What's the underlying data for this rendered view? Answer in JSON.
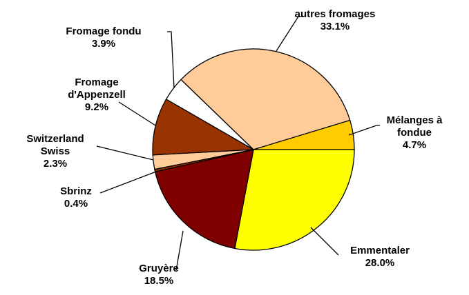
{
  "chart_data": {
    "type": "pie",
    "categories": [
      "Emmentaler",
      "Gruyère",
      "Sbrinz",
      "Switzerland Swiss",
      "Fromage d'Appenzell",
      "Fromage fondu",
      "autres fromages",
      "Mélanges à fondue"
    ],
    "values": [
      28.0,
      18.5,
      0.4,
      2.3,
      9.2,
      3.9,
      33.1,
      4.7
    ],
    "value_labels": [
      "28.0%",
      "18.5%",
      "0.4%",
      "2.3%",
      "9.2%",
      "3.9%",
      "33.1%",
      "4.7%"
    ],
    "colors": [
      "#FFFF00",
      "#800000",
      "#993300",
      "#FFCC99",
      "#993300",
      "#FFFFFF",
      "#FFCC99",
      "#FFCC00"
    ]
  }
}
